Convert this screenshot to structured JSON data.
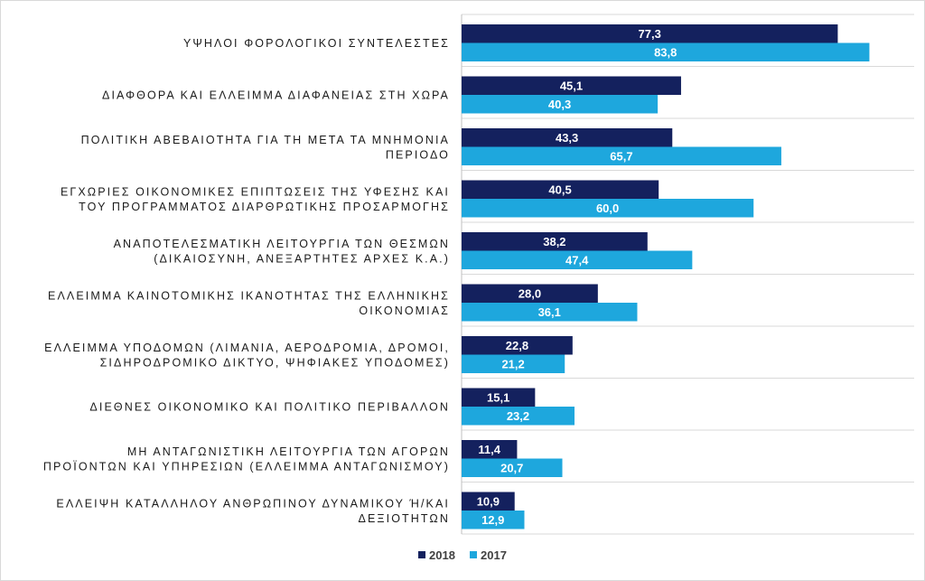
{
  "chart_data": {
    "type": "bar",
    "orientation": "horizontal",
    "categories": [
      [
        "ΥΨΗΛΟΙ ΦΟΡΟΛΟΓΙΚΟΙ ΣΥΝΤΕΛΕΣΤΕΣ"
      ],
      [
        "ΔΙΑΦΘΟΡΑ ΚΑΙ ΕΛΛΕΙΜΜΑ ΔΙΑΦΑΝΕΙΑΣ ΣΤΗ ΧΩΡΑ"
      ],
      [
        "ΠΟΛΙΤΙΚΗ ΑΒΕΒΑΙΟΤΗΤΑ ΓΙΑ ΤΗ ΜΕΤΑ ΤΑ ΜΝΗΜΟΝΙΑ",
        "ΠΕΡΙΟΔΟ"
      ],
      [
        "ΕΓΧΩΡΙΕΣ ΟΙΚΟΝΟΜΙΚΕΣ ΕΠΙΠΤΩΣΕΙΣ ΤΗΣ ΥΦΕΣΗΣ ΚΑΙ",
        "ΤΟΥ ΠΡΟΓΡΑΜΜΑΤΟΣ ΔΙΑΡΘΡΩΤΙΚΗΣ ΠΡΟΣΑΡΜΟΓΗΣ"
      ],
      [
        "ΑΝΑΠΟΤΕΛΕΣΜΑΤΙΚΗ ΛΕΙΤΟΥΡΓΙΑ ΤΩΝ ΘΕΣΜΩΝ",
        "(ΔΙΚΑΙΟΣΥΝΗ, ΑΝΕΞΑΡΤΗΤΕΣ ΑΡΧΕΣ Κ.Α.)"
      ],
      [
        "ΕΛΛΕΙΜΜΑ ΚΑΙΝΟΤΟΜΙΚΗΣ ΙΚΑΝΟΤΗΤΑΣ ΤΗΣ ΕΛΛΗΝΙΚΗΣ",
        "ΟΙΚΟΝΟΜΙΑΣ"
      ],
      [
        "ΕΛΛΕΙΜΜΑ ΥΠΟΔΟΜΩΝ (ΛΙΜΑΝΙΑ, ΑΕΡΟΔΡΟΜΙΑ, ΔΡΟΜΟΙ,",
        "ΣΙΔΗΡΟΔΡΟΜΙΚΟ ΔΙΚΤΥΟ, ΨΗΦΙΑΚΕΣ ΥΠΟΔΟΜΕΣ)"
      ],
      [
        "ΔΙΕΘΝΕΣ ΟΙΚΟΝΟΜΙΚΟ ΚΑΙ ΠΟΛΙΤΙΚΟ ΠΕΡΙΒΑΛΛΟΝ"
      ],
      [
        "ΜΗ ΑΝΤΑΓΩΝΙΣΤΙΚΗ ΛΕΙΤΟΥΡΓΙΑ ΤΩΝ ΑΓΟΡΩΝ",
        "ΠΡΟΪΟΝΤΩΝ ΚΑΙ ΥΠΗΡΕΣΙΩΝ (ΕΛΛΕΙΜΜΑ ΑΝΤΑΓΩΝΙΣΜΟΥ)"
      ],
      [
        "ΕΛΛΕΙΨΗ ΚΑΤΑΛΛΗΛΟΥ ΑΝΘΡΩΠΙΝΟΥ ΔΥΝΑΜΙΚΟΥ Ή/ΚΑΙ",
        "ΔΕΞΙΟΤΗΤΩΝ"
      ]
    ],
    "series": [
      {
        "name": "2018",
        "color": "#14215e",
        "values": [
          77.3,
          45.1,
          43.3,
          40.5,
          38.2,
          28.0,
          22.8,
          15.1,
          11.4,
          10.9
        ],
        "labels": [
          "77,3",
          "45,1",
          "43,3",
          "40,5",
          "38,2",
          "28,0",
          "22,8",
          "15,1",
          "11,4",
          "10,9"
        ]
      },
      {
        "name": "2017",
        "color": "#1ea7dd",
        "values": [
          83.8,
          40.3,
          65.7,
          60.0,
          47.4,
          36.1,
          21.2,
          23.2,
          20.7,
          12.9
        ],
        "labels": [
          "83,8",
          "40,3",
          "65,7",
          "60,0",
          "47,4",
          "36,1",
          "21,2",
          "23,2",
          "20,7",
          "12,9"
        ]
      }
    ],
    "xlim": [
      0,
      93
    ],
    "grid": true,
    "legend_position": "bottom",
    "title": "",
    "xlabel": "",
    "ylabel": ""
  }
}
